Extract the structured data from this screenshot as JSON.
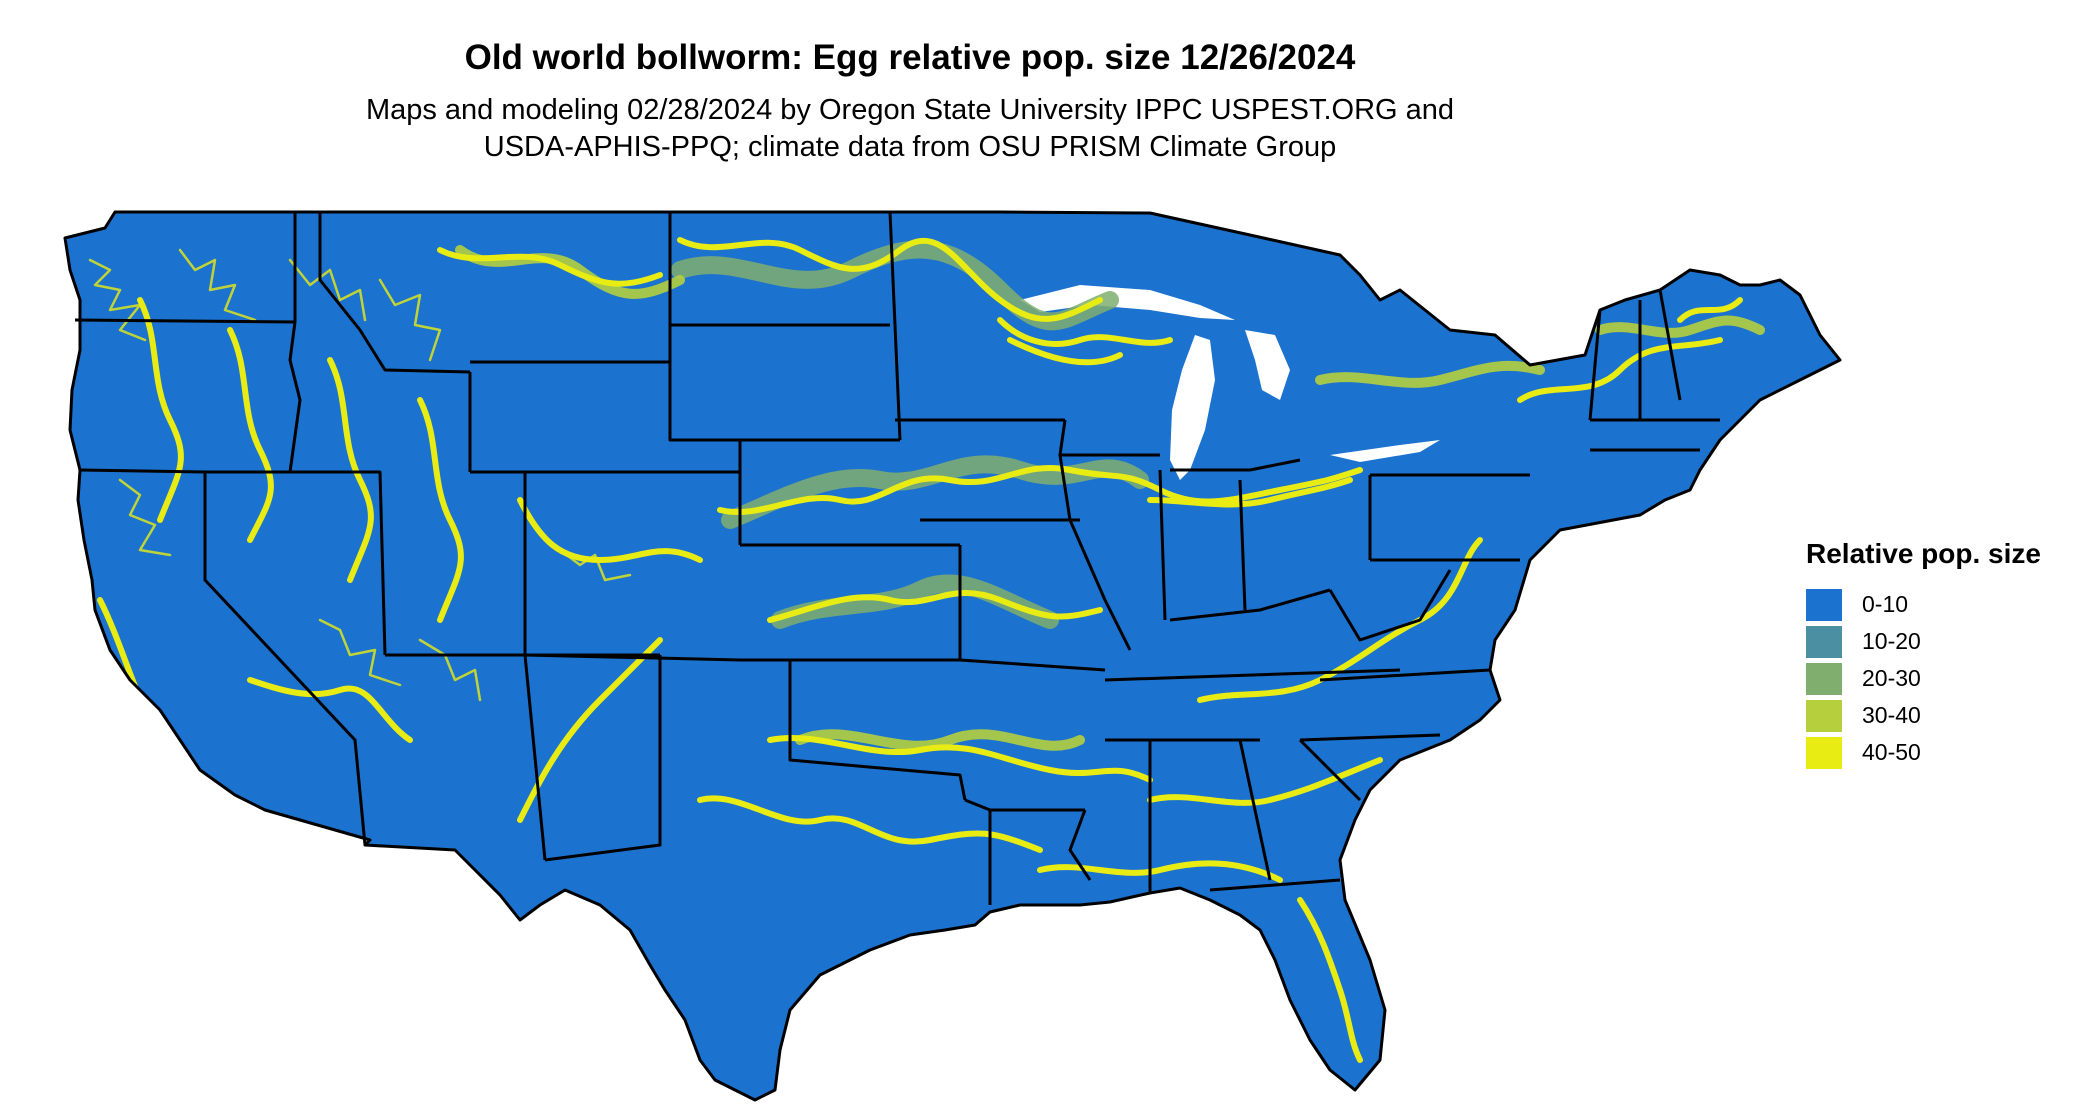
{
  "title": "Old world bollworm: Egg relative pop. size 12/26/2024",
  "subtitle_lines": [
    "Maps and modeling 02/28/2024 by Oregon State University IPPC USPEST.ORG and",
    "USDA-APHIS-PPQ; climate data from OSU PRISM Climate Group"
  ],
  "legend": {
    "title": "Relative pop. size",
    "items": [
      {
        "label": "0-10",
        "color": "#1b72cf"
      },
      {
        "label": "10-20",
        "color": "#4a8fa2"
      },
      {
        "label": "20-30",
        "color": "#7fae6e"
      },
      {
        "label": "30-40",
        "color": "#b5cf3d"
      },
      {
        "label": "40-50",
        "color": "#e9ec13"
      }
    ]
  },
  "map": {
    "background_class": "0-10",
    "border_color": "#000000"
  }
}
